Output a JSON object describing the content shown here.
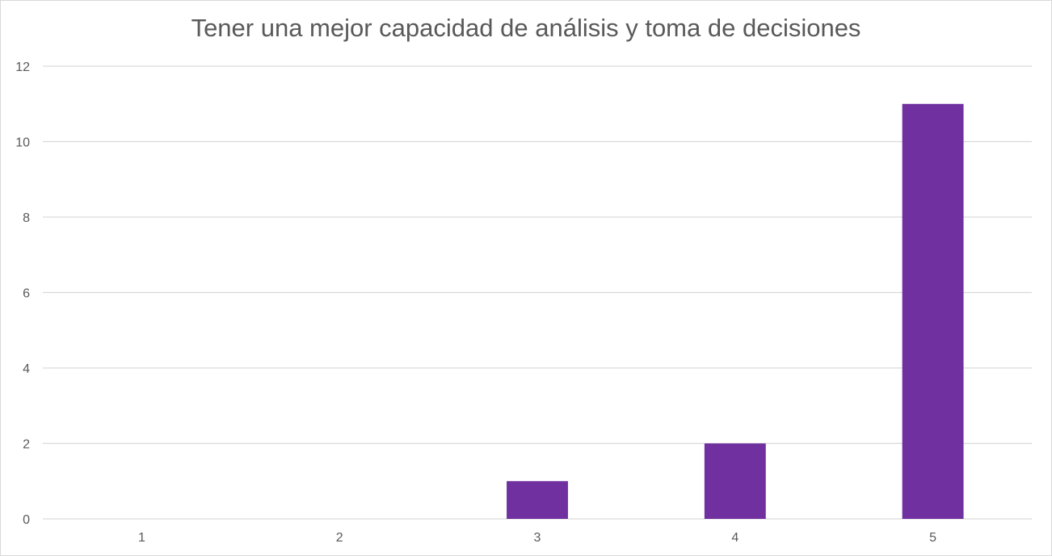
{
  "chart_data": {
    "type": "bar",
    "title": "Tener una mejor capacidad de análisis y toma de decisiones",
    "xlabel": "",
    "ylabel": "",
    "categories": [
      "1",
      "2",
      "3",
      "4",
      "5"
    ],
    "values": [
      0,
      0,
      1,
      2,
      11
    ],
    "ylim": [
      0,
      12
    ],
    "yticks": [
      "0",
      "2",
      "4",
      "6",
      "8",
      "10",
      "12"
    ],
    "grid": true,
    "legend": "none",
    "bar_color": "#7030a0",
    "grid_color": "#d9d9d9",
    "text_color": "#595959"
  }
}
